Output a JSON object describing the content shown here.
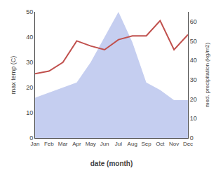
{
  "chart_data": {
    "type": "line",
    "categories": [
      "Jan",
      "Feb",
      "Mar",
      "Apr",
      "May",
      "Jun",
      "Jul",
      "Aug",
      "Sep",
      "Oct",
      "Nov",
      "Dec"
    ],
    "series": [
      {
        "type": "area",
        "color": "#c5cef0",
        "values": [
          16.0,
          18.0,
          20.0,
          22.0,
          30.0,
          40.0,
          50.0,
          38.0,
          22.0,
          19.0,
          15.0,
          15.0
        ]
      },
      {
        "type": "line",
        "color": "#c0504d",
        "values": [
          25.5,
          26.5,
          30.0,
          38.5,
          36.5,
          35.0,
          39.0,
          40.5,
          40.5,
          46.5,
          35.0,
          41.0
        ]
      }
    ],
    "xlabel": "date (month)",
    "ylabel": "max temp (C)",
    "y2label": "med. precipitation (kg/m2)",
    "ylim": [
      0,
      50
    ],
    "yticks": [
      0,
      10,
      20,
      30,
      40,
      50
    ],
    "y2lim": [
      0,
      65
    ],
    "y2ticks": [
      0,
      10,
      20,
      30,
      40,
      50,
      60
    ],
    "grid": false
  }
}
